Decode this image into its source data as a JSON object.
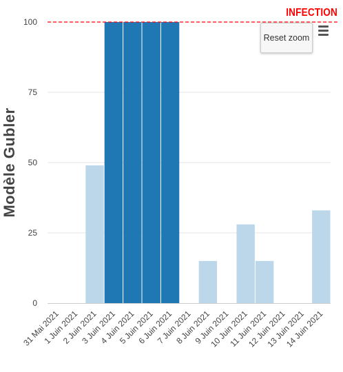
{
  "chart_data": {
    "type": "bar",
    "title": "",
    "ylabel": "Modèle Gubler",
    "xlabel": "",
    "categories": [
      "31 Mai 2021",
      "1 Juin 2021",
      "2 Juin 2021",
      "3 Juin 2021",
      "4 Juin 2021",
      "5 Juin 2021",
      "6 Juin 2021",
      "7 Juin 2021",
      "8 Juin 2021",
      "9 Juin 2021",
      "10 Juin 2021",
      "11 Juin 2021",
      "12 Juin 2021",
      "13 Juin 2021",
      "14 Juin 2021"
    ],
    "values": [
      0,
      0,
      49,
      100,
      100,
      100,
      100,
      0,
      15,
      0,
      28,
      15,
      0,
      0,
      33
    ],
    "ylim": [
      0,
      100
    ],
    "yticks": [
      0,
      25,
      50,
      75,
      100
    ],
    "grid": true,
    "threshold": {
      "value": 100,
      "label": "INFECTION",
      "color": "#ff0000"
    },
    "colors": {
      "infection": "#1f77b4",
      "normal": "#bcd7ea",
      "grid": "#e6e6e6",
      "threshold": "#ff0000"
    }
  },
  "controls": {
    "reset_zoom_label": "Reset zoom",
    "menu_icon": "hamburger-menu-icon"
  }
}
